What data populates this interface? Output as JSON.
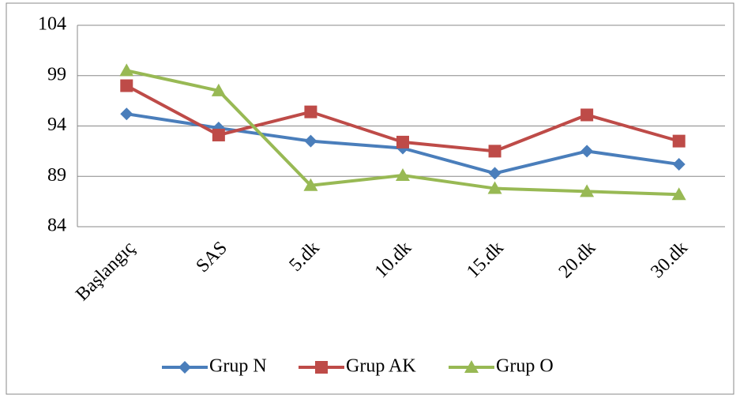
{
  "chart_data": {
    "type": "line",
    "categories": [
      "Başlangıç",
      "SAS",
      "5.dk",
      "10.dk",
      "15.dk",
      "20.dk",
      "30.dk"
    ],
    "series": [
      {
        "name": "Grup N",
        "color": "#4a7ebb",
        "marker": "diamond",
        "values": [
          95.2,
          93.8,
          92.5,
          91.8,
          89.3,
          91.5,
          90.2
        ]
      },
      {
        "name": "Grup AK",
        "color": "#be4b48",
        "marker": "square",
        "values": [
          98.0,
          93.1,
          95.4,
          92.4,
          91.5,
          95.1,
          92.5
        ]
      },
      {
        "name": "Grup O",
        "color": "#98b954",
        "marker": "triangle",
        "values": [
          99.5,
          97.5,
          88.1,
          89.1,
          87.8,
          87.5,
          87.2
        ]
      }
    ],
    "ylim": [
      84,
      104
    ],
    "yticks": [
      84,
      89,
      94,
      99,
      104
    ],
    "grid": true,
    "legend": "bottom"
  }
}
